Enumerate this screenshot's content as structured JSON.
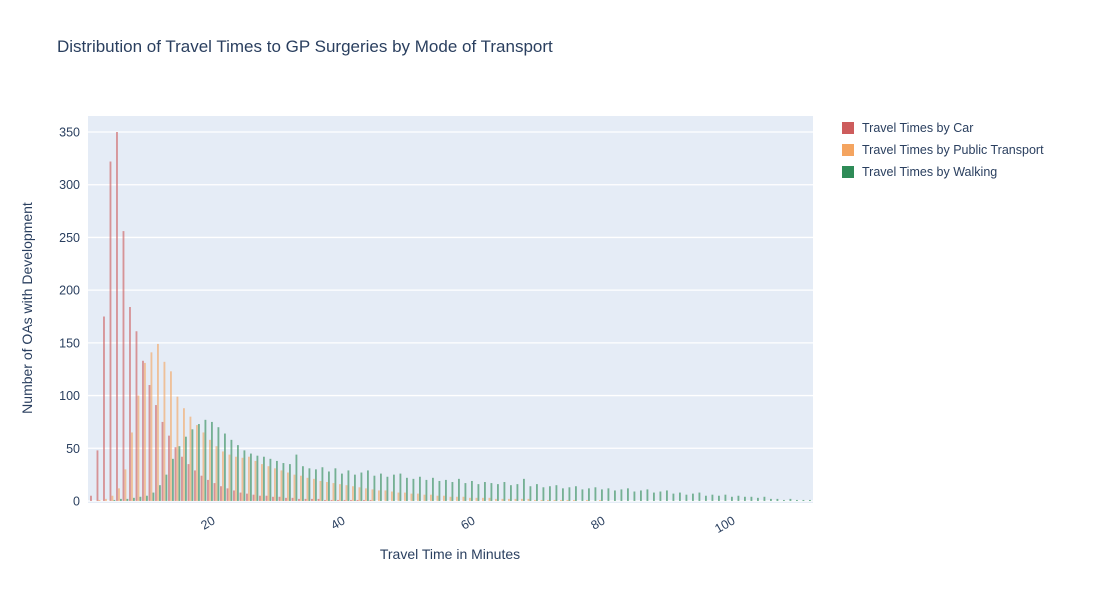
{
  "title": "Distribution of Travel Times to GP Surgeries by Mode of Transport",
  "colors": {
    "car": "#CD5C5C",
    "public_transport": "#F4A460",
    "walking": "#2E8B57",
    "text": "#2a3f5f",
    "plot_background": "#e5ecf6",
    "gridline": "#ffffff"
  },
  "legend": {
    "items": [
      {
        "label": "Travel Times by Car",
        "color": "#CD5C5C",
        "slug": "car"
      },
      {
        "label": "Travel Times by Public Transport",
        "color": "#F4A460",
        "slug": "public-transport"
      },
      {
        "label": "Travel Times by Walking",
        "color": "#2E8B57",
        "slug": "walking"
      }
    ]
  },
  "chart_data": {
    "type": "bar",
    "subtype": "grouped-histogram",
    "title": "Distribution of Travel Times to GP Surgeries by Mode of Transport",
    "xlabel": "Travel Time in Minutes",
    "ylabel": "Number of OAs with Development",
    "xlim": [
      1.2,
      113.5
    ],
    "ylim": [
      0,
      365
    ],
    "xticks": [
      20,
      40,
      60,
      80,
      100
    ],
    "yticks": [
      0,
      50,
      100,
      150,
      200,
      250,
      300,
      350
    ],
    "grid": "horizontal-white-on-lightblue",
    "legend_position": "right-top-outside",
    "bin_width_minutes": 1,
    "x": [
      1,
      2,
      3,
      4,
      5,
      6,
      7,
      8,
      9,
      10,
      11,
      12,
      13,
      14,
      15,
      16,
      17,
      18,
      19,
      20,
      21,
      22,
      23,
      24,
      25,
      26,
      27,
      28,
      29,
      30,
      31,
      32,
      33,
      34,
      35,
      36,
      37,
      38,
      39,
      40,
      41,
      42,
      43,
      44,
      45,
      46,
      47,
      48,
      49,
      50,
      51,
      52,
      53,
      54,
      55,
      56,
      57,
      58,
      59,
      60,
      61,
      62,
      63,
      64,
      65,
      66,
      67,
      68,
      69,
      70,
      71,
      72,
      73,
      74,
      75,
      76,
      77,
      78,
      79,
      80,
      81,
      82,
      83,
      84,
      85,
      86,
      87,
      88,
      89,
      90,
      91,
      92,
      93,
      94,
      95,
      96,
      97,
      98,
      99,
      100,
      101,
      102,
      103,
      104,
      105,
      106,
      107,
      108,
      109,
      110,
      111,
      112,
      113
    ],
    "series": [
      {
        "name": "Travel Times by Car",
        "color": "#CD5C5C",
        "values": [
          0,
          5,
          48,
          175,
          322,
          350,
          256,
          184,
          161,
          133,
          110,
          91,
          75,
          62,
          51,
          42,
          35,
          29,
          24,
          20,
          17,
          14,
          12,
          10,
          8,
          7,
          6,
          5,
          5,
          4,
          4,
          3,
          3,
          2,
          2,
          2,
          2,
          1,
          1,
          1,
          1,
          1,
          1,
          1,
          1,
          0,
          0,
          0,
          0,
          0,
          0,
          0,
          0,
          0,
          0,
          0,
          0,
          0,
          0,
          0,
          0,
          0,
          0,
          0,
          0,
          0,
          0,
          0,
          0,
          0,
          0,
          0,
          0,
          0,
          0,
          0,
          0,
          0,
          0,
          0,
          0,
          0,
          0,
          0,
          0,
          0,
          0,
          0,
          0,
          0,
          0,
          0,
          0,
          0,
          0,
          0,
          0,
          0,
          0,
          0,
          0,
          0,
          0,
          0,
          0,
          0,
          0,
          0,
          0,
          0,
          0,
          0,
          0
        ]
      },
      {
        "name": "Travel Times by Public Transport",
        "color": "#F4A460",
        "values": [
          0,
          0,
          1,
          2,
          5,
          12,
          30,
          65,
          100,
          131,
          141,
          149,
          132,
          123,
          99,
          88,
          80,
          72,
          65,
          58,
          52,
          47,
          44,
          42,
          41,
          42,
          38,
          35,
          33,
          31,
          29,
          27,
          25,
          24,
          22,
          21,
          19,
          18,
          17,
          16,
          15,
          14,
          13,
          12,
          11,
          10,
          10,
          9,
          8,
          8,
          7,
          7,
          6,
          6,
          5,
          5,
          4,
          4,
          4,
          3,
          3,
          3,
          3,
          2,
          2,
          2,
          2,
          2,
          2,
          1,
          1,
          1,
          1,
          1,
          1,
          1,
          0,
          1,
          0,
          1,
          0,
          0,
          0,
          0,
          0,
          0,
          0,
          0,
          0,
          0,
          0,
          0,
          0,
          0,
          0,
          0,
          0,
          0,
          0,
          0,
          0,
          0,
          0,
          0,
          0,
          0,
          0,
          0,
          0,
          0,
          0,
          0,
          0
        ]
      },
      {
        "name": "Travel Times by Walking",
        "color": "#2E8B57",
        "values": [
          0,
          0,
          0,
          0,
          1,
          2,
          2,
          3,
          4,
          5,
          8,
          15,
          25,
          40,
          52,
          61,
          68,
          73,
          77,
          75,
          70,
          64,
          58,
          53,
          48,
          45,
          43,
          42,
          40,
          38,
          36,
          35,
          44,
          33,
          31,
          30,
          32,
          28,
          31,
          26,
          29,
          25,
          27,
          29,
          24,
          26,
          23,
          25,
          26,
          22,
          21,
          23,
          20,
          22,
          19,
          20,
          18,
          21,
          17,
          19,
          16,
          18,
          17,
          16,
          18,
          15,
          16,
          21,
          14,
          16,
          13,
          14,
          15,
          12,
          13,
          14,
          11,
          12,
          13,
          11,
          12,
          10,
          11,
          12,
          9,
          10,
          11,
          8,
          9,
          10,
          7,
          8,
          6,
          7,
          8,
          5,
          6,
          5,
          6,
          4,
          5,
          4,
          4,
          3,
          4,
          2,
          2,
          1,
          2,
          1,
          1,
          1,
          1
        ]
      }
    ]
  }
}
